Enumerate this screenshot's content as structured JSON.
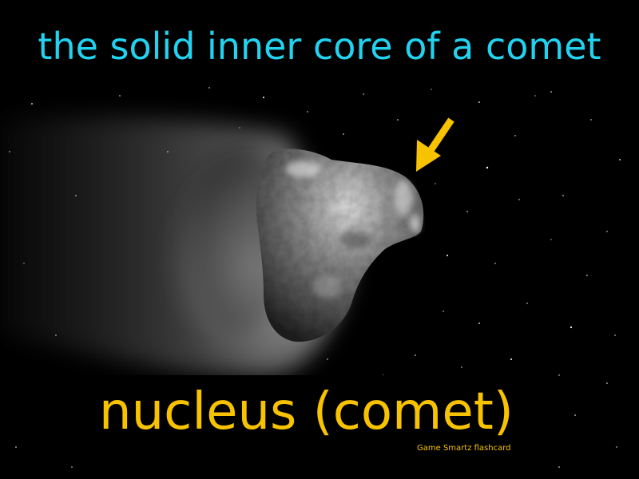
{
  "flashcard": {
    "definition": "the solid inner core of a comet",
    "term": "nucleus (comet)",
    "brand": "Game Smartz  flashcard"
  },
  "colors": {
    "definition_text": "#22d3f0",
    "term_text": "#f7c200",
    "arrow": "#f7c200",
    "background": "#000000"
  },
  "illustration": {
    "subject": "comet-nucleus",
    "pointer": "arrow-icon"
  }
}
